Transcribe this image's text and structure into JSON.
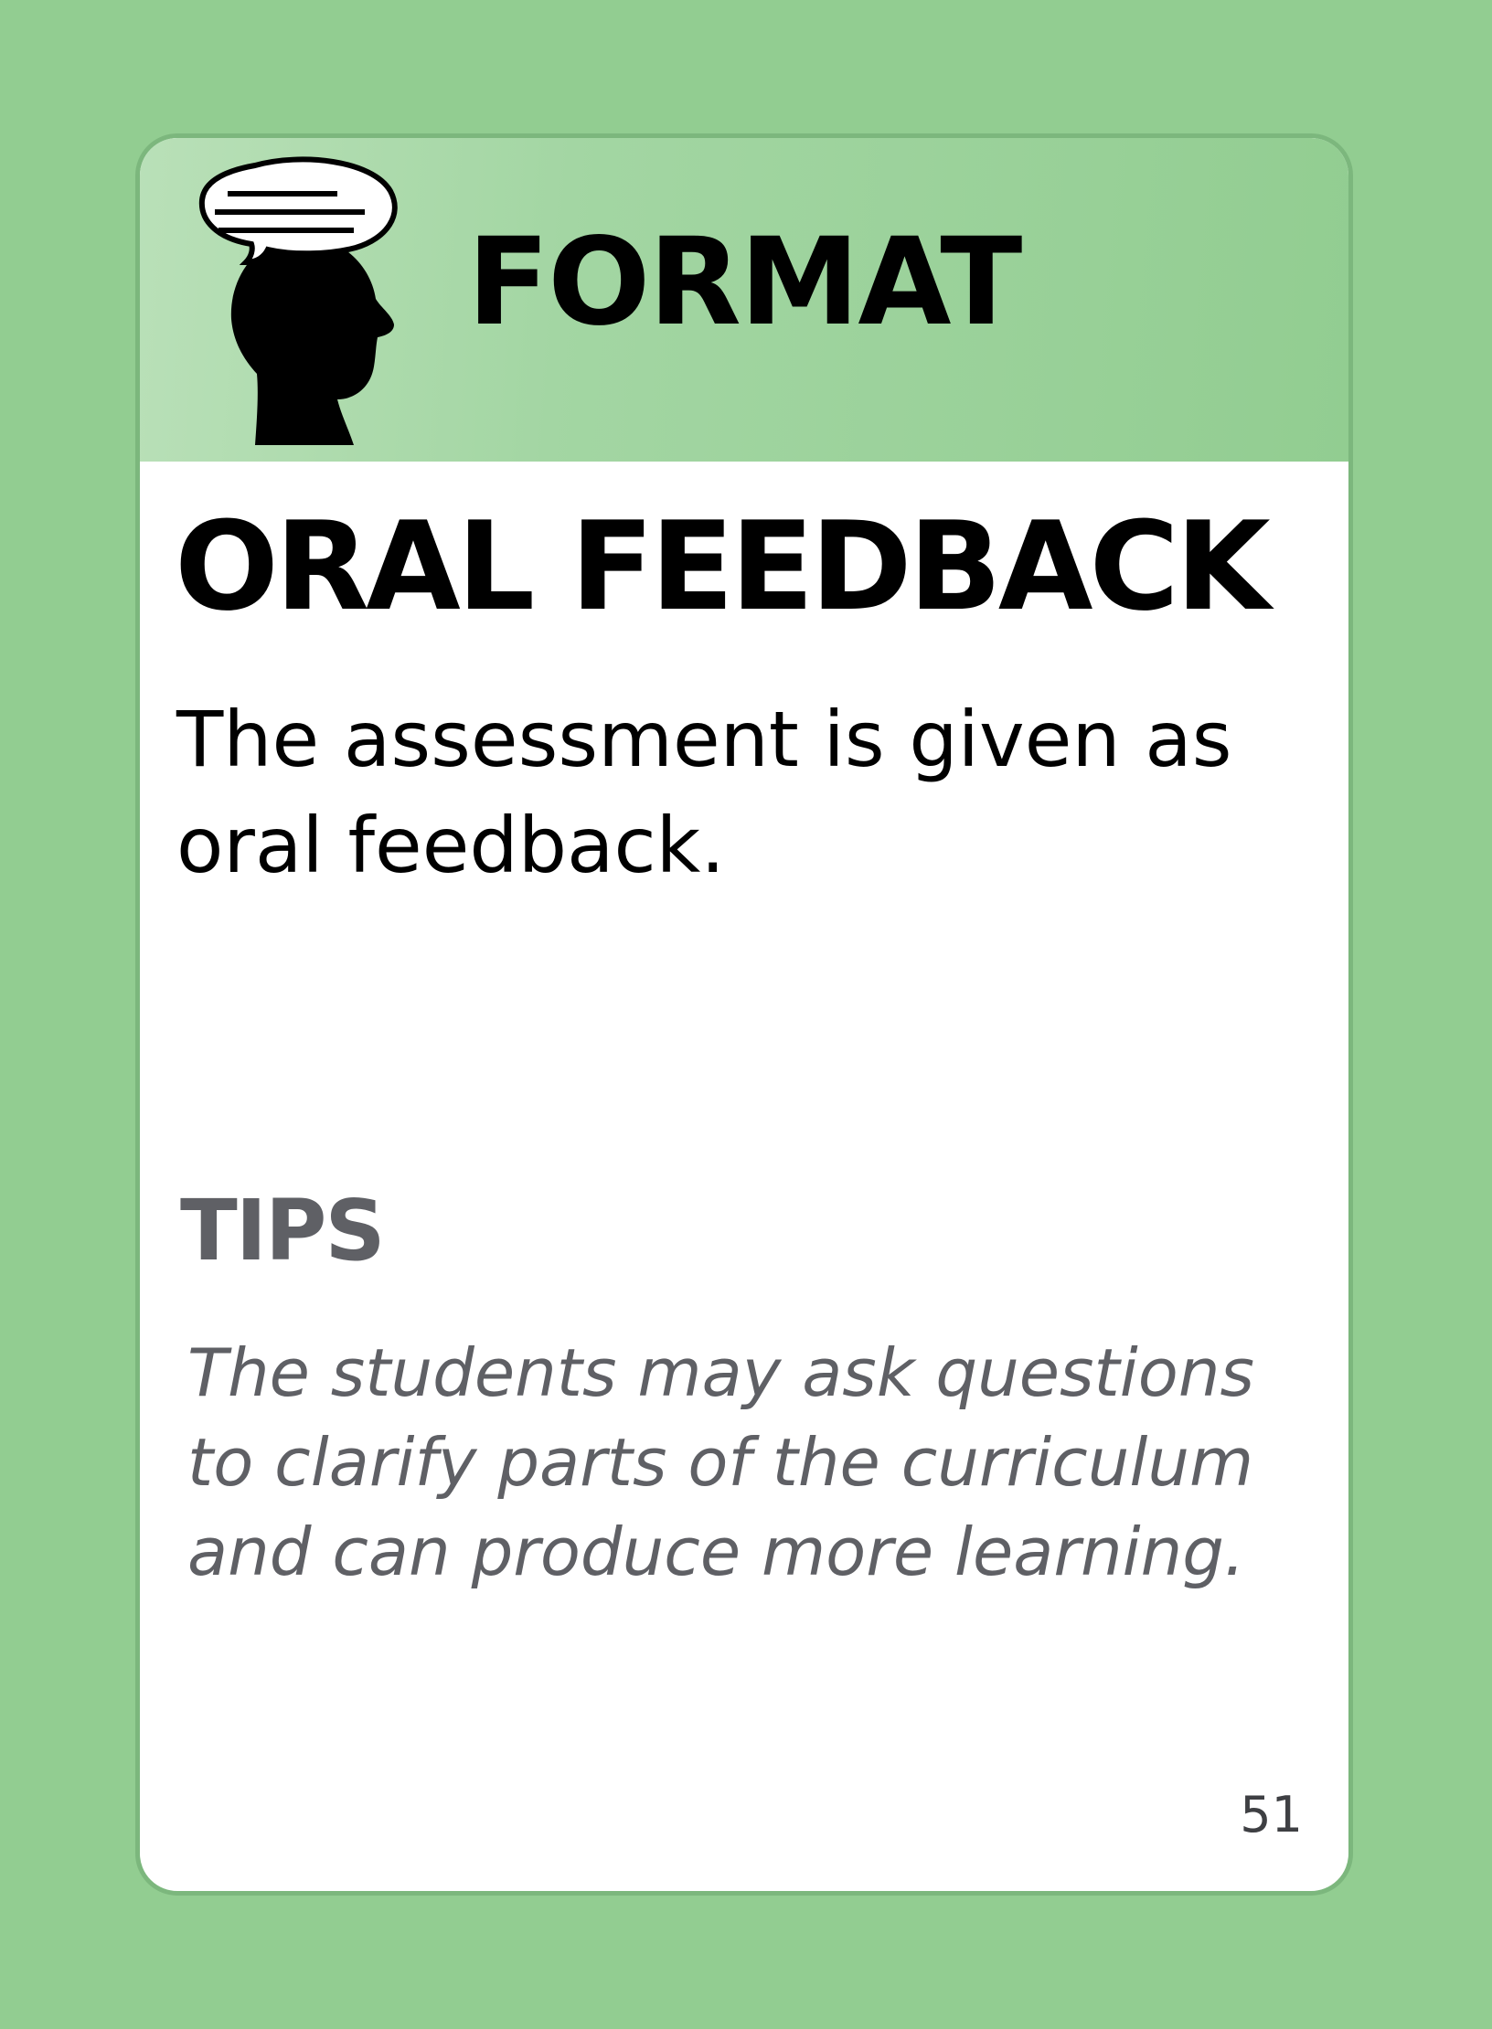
{
  "card": {
    "category": "FORMAT",
    "icon": "head-speech-bubble-icon",
    "title": "ORAL FEEDBACK",
    "description": "The assessment is given as oral feedback.",
    "tips_heading": "TIPS",
    "tips_body": "The students may ask questions to clarify parts of the curriculum and can produce more learning.",
    "page_number": "51"
  },
  "colors": {
    "background": "#92cd91",
    "header_light": "#b9e0b8",
    "header_dark": "#92cd91",
    "tips_text": "#5f6065"
  }
}
